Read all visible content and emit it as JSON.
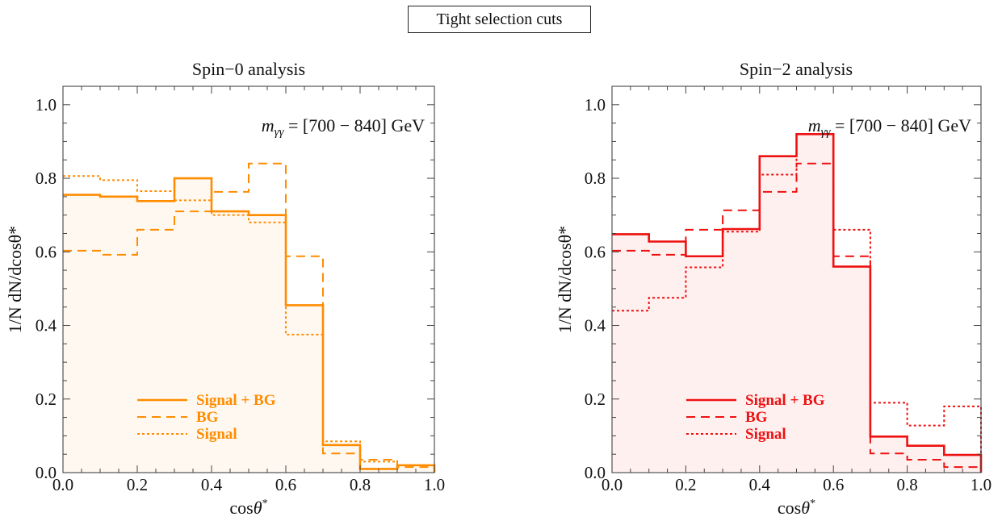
{
  "header": {
    "title": "Tight selection cuts"
  },
  "chart_data": [
    {
      "type": "step",
      "title": "Spin−0 analysis",
      "annotation": {
        "var": "m",
        "sub": "γγ",
        "rest": " = [700 − 840] GeV"
      },
      "xlabel": {
        "base": "cos",
        "sym": "θ",
        "sup": "*"
      },
      "ylabel": "1/N dN/dcosθ*",
      "xlim": [
        0,
        1
      ],
      "ylim": [
        0,
        1.05
      ],
      "xticks": [
        "0.0",
        "0.2",
        "0.4",
        "0.6",
        "0.8",
        "1.0"
      ],
      "yticks": [
        "0.0",
        "0.2",
        "0.4",
        "0.6",
        "0.8",
        "1.0"
      ],
      "color": "#ff8c00",
      "fill": "#fff8f0",
      "bin_edges": [
        0,
        0.1,
        0.2,
        0.3,
        0.4,
        0.5,
        0.6,
        0.7,
        0.8,
        0.9,
        1.0
      ],
      "series": [
        {
          "name": "Signal + BG",
          "style": "solid",
          "values": [
            0.755,
            0.75,
            0.738,
            0.8,
            0.71,
            0.7,
            0.455,
            0.075,
            0.01,
            0.02
          ]
        },
        {
          "name": "BG",
          "style": "dashed",
          "values": [
            0.603,
            0.592,
            0.66,
            0.71,
            0.763,
            0.84,
            0.588,
            0.052,
            0.035,
            0.015
          ]
        },
        {
          "name": "Signal",
          "style": "dotted",
          "values": [
            0.806,
            0.795,
            0.765,
            0.74,
            0.7,
            0.68,
            0.375,
            0.085,
            0.03,
            0.02
          ]
        }
      ],
      "legend": "bottom-left"
    },
    {
      "type": "step",
      "title": "Spin−2 analysis",
      "annotation": {
        "var": "m",
        "sub": "γγ",
        "rest": " = [700 − 840] GeV"
      },
      "xlabel": {
        "base": "cos",
        "sym": "θ",
        "sup": "*"
      },
      "ylabel": "1/N dN/dcosθ*",
      "xlim": [
        0,
        1
      ],
      "ylim": [
        0,
        1.05
      ],
      "xticks": [
        "0.0",
        "0.2",
        "0.4",
        "0.6",
        "0.8",
        "1.0"
      ],
      "yticks": [
        "0.0",
        "0.2",
        "0.4",
        "0.6",
        "0.8",
        "1.0"
      ],
      "color": "#ee1111",
      "fill": "#fff0f0",
      "bin_edges": [
        0,
        0.1,
        0.2,
        0.3,
        0.4,
        0.5,
        0.6,
        0.7,
        0.8,
        0.9,
        1.0
      ],
      "series": [
        {
          "name": "Signal + BG",
          "style": "solid",
          "values": [
            0.648,
            0.628,
            0.588,
            0.662,
            0.86,
            0.92,
            0.56,
            0.098,
            0.073,
            0.048
          ]
        },
        {
          "name": "BG",
          "style": "dashed",
          "values": [
            0.603,
            0.592,
            0.66,
            0.713,
            0.763,
            0.84,
            0.588,
            0.052,
            0.035,
            0.015
          ]
        },
        {
          "name": "Signal",
          "style": "dotted",
          "values": [
            0.44,
            0.475,
            0.558,
            0.655,
            0.81,
            0.92,
            0.66,
            0.19,
            0.128,
            0.18
          ]
        }
      ],
      "legend": "bottom-left"
    }
  ]
}
